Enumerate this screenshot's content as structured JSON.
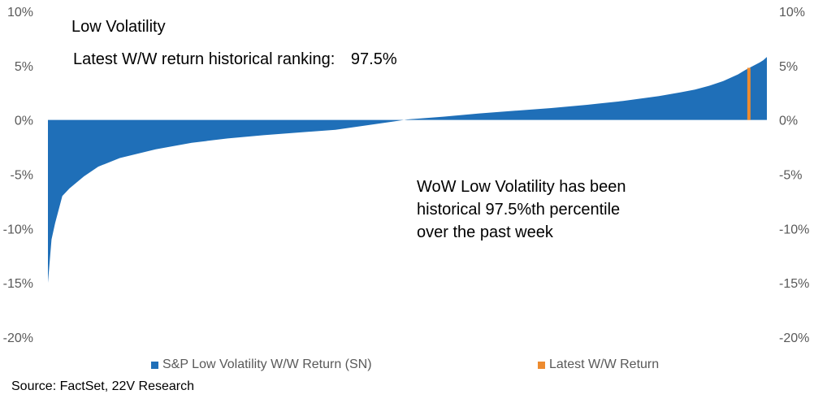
{
  "colors": {
    "series": "#1F6FB8",
    "latest": "#ED8B2F",
    "axis_text": "#595959"
  },
  "header": {
    "title": "Low Volatility",
    "ranking_label": "Latest W/W return historical ranking:",
    "ranking_value": "97.5%"
  },
  "annotation": {
    "lines": [
      "WoW Low Volatility has been",
      "historical 97.5%th percentile",
      "over the past week"
    ]
  },
  "footer": {
    "source": "Source: FactSet, 22V Research"
  },
  "chart_data": {
    "type": "area",
    "description": "Sorted distribution of historical weekly returns (percentile on x, return % on y)",
    "x_label": "",
    "y_label": "",
    "ylim": [
      -20,
      10
    ],
    "y_ticks": [
      10,
      5,
      0,
      -5,
      -10,
      -15,
      -20
    ],
    "y_tick_labels": [
      "10%",
      "5%",
      "0%",
      "-5%",
      "-10%",
      "-15%",
      "-20%"
    ],
    "secondary_y_tick_labels": [
      "10%",
      "5%",
      "0%",
      "-5%",
      "-10%",
      "-15%",
      "-20%"
    ],
    "grid": false,
    "legend_position": "bottom",
    "series": [
      {
        "name": "S&P Low Volatility W/W Return (SN)",
        "color": "#1F6FB8",
        "x_percentile": [
          0,
          0.5,
          1,
          2,
          3,
          5,
          7,
          10,
          15,
          20,
          25,
          30,
          40,
          48,
          50,
          55,
          60,
          65,
          70,
          75,
          80,
          85,
          88,
          90,
          92,
          94,
          95,
          96,
          97,
          98,
          99,
          99.5,
          100
        ],
        "values": [
          -15.0,
          -11.0,
          -9.5,
          -7.0,
          -6.3,
          -5.2,
          -4.3,
          -3.5,
          -2.7,
          -2.1,
          -1.7,
          -1.4,
          -0.9,
          -0.15,
          0.05,
          0.3,
          0.6,
          0.85,
          1.1,
          1.4,
          1.75,
          2.2,
          2.55,
          2.8,
          3.15,
          3.6,
          3.9,
          4.2,
          4.6,
          4.95,
          5.3,
          5.5,
          5.8
        ]
      },
      {
        "name": "Latest W/W Return",
        "color": "#ED8B2F",
        "percentile": 97.5,
        "value": 4.8
      }
    ]
  },
  "legend": {
    "items": [
      {
        "label": "S&P Low Volatility W/W Return (SN)",
        "color": "#1F6FB8"
      },
      {
        "label": "Latest W/W Return",
        "color": "#ED8B2F"
      }
    ]
  }
}
